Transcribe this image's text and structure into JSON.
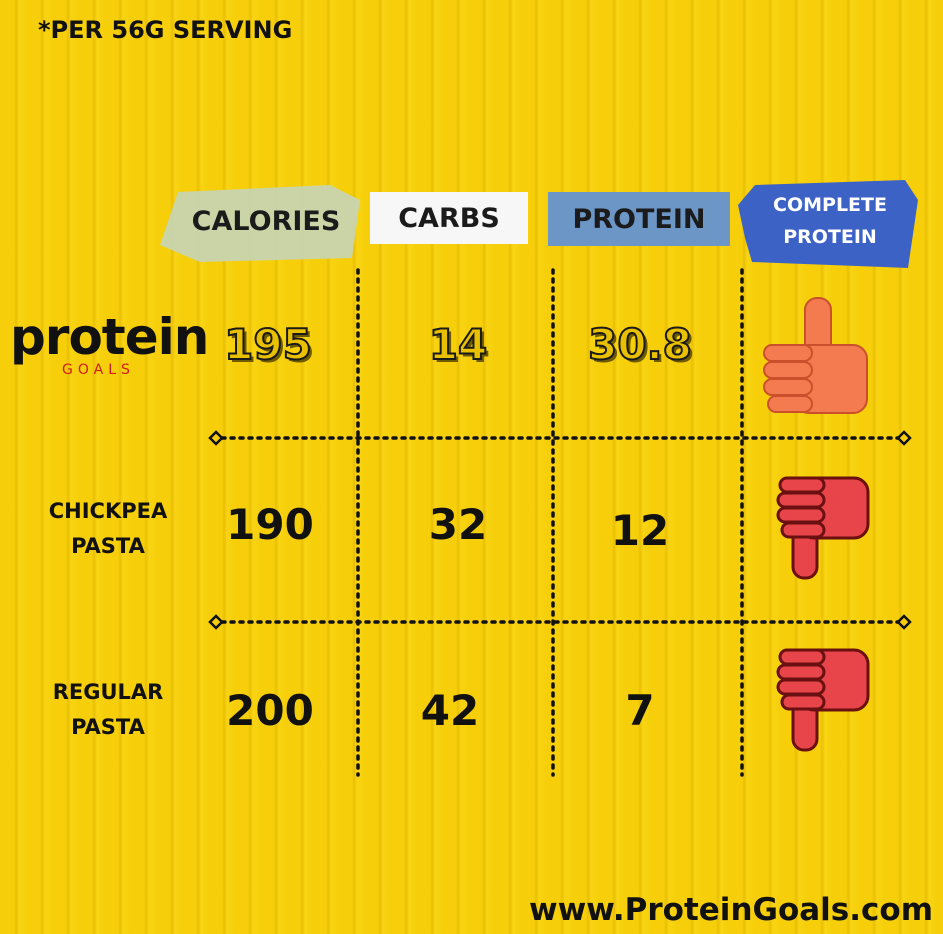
{
  "note": "*PER 56G SERVING",
  "table": {
    "columns": [
      "CALORIES",
      "CARBS",
      "PROTEIN",
      "COMPLETE PROTEIN"
    ],
    "rows": [
      {
        "label": {
          "brand": "protein",
          "tagline": "GOALS"
        },
        "values": [
          "195",
          "14",
          "30.8"
        ]
      },
      {
        "label": "CHICKPEA PASTA",
        "values": [
          "190",
          "32",
          "12"
        ]
      },
      {
        "label": "REGULAR PASTA",
        "values": [
          "200",
          "42",
          "7"
        ]
      }
    ]
  },
  "footer": "www.ProteinGoals.com"
}
